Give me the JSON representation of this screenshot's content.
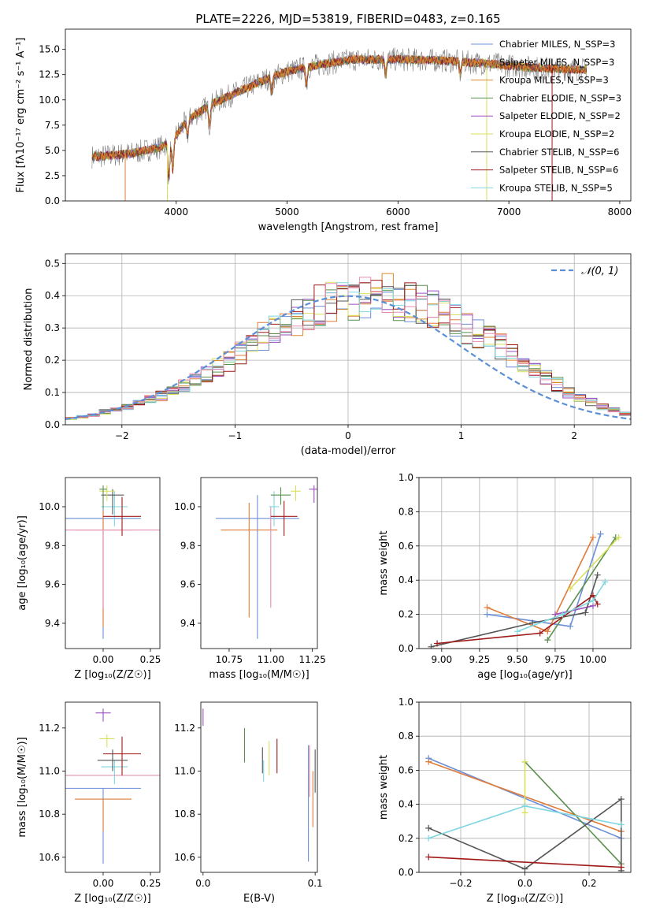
{
  "figure_title": "PLATE=2226, MJD=53819, FIBERID=0483, z=0.165",
  "colors": {
    "chabrier_miles": "#6a8fd8",
    "salpeter_miles": "#e07b39",
    "kroupa_miles": "#d98a2e",
    "chabrier_elodie": "#5a8f4e",
    "salpeter_elodie": "#9b4fc0",
    "kroupa_elodie": "#d8e05a",
    "chabrier_stelib": "#555555",
    "salpeter_stelib": "#a01818",
    "kroupa_stelib": "#7fd6e0",
    "pink": "#e58fb4",
    "gaussian": "#5b8fd6"
  },
  "chart_data": [
    {
      "type": "line",
      "title": "PLATE=2226, MJD=53819, FIBERID=0483, z=0.165",
      "xlabel": "wavelength [Angstrom, rest frame]",
      "ylabel": "Flux [fλ10⁻¹⁷ erg cm⁻² s⁻¹ A⁻¹]",
      "xlim": [
        3000,
        8100
      ],
      "ylim": [
        0,
        17
      ],
      "xticks": [
        "4000",
        "5000",
        "6000",
        "7000",
        "8000"
      ],
      "yticks": [
        "0.0",
        "2.5",
        "5.0",
        "7.5",
        "10.0",
        "12.5",
        "15.0"
      ],
      "legend_position": "upper right",
      "legend": [
        "Chabrier MILES, N_SSP=3",
        "Salpeter MILES, N_SSP=3",
        "Kroupa MILES, N_SSP=3",
        "Chabrier ELODIE, N_SSP=3",
        "Salpeter ELODIE, N_SSP=2",
        "Kroupa ELODIE, N_SSP=2",
        "Chabrier STELIB, N_SSP=6",
        "Salpeter STELIB, N_SSP=6",
        "Kroupa STELIB, N_SSP=5"
      ],
      "continuum": {
        "x": [
          3300,
          3600,
          3850,
          3950,
          4100,
          4300,
          4500,
          4800,
          5000,
          5300,
          5600,
          6000,
          6400,
          6800,
          7200,
          7600
        ],
        "y": [
          4.4,
          4.7,
          5.3,
          5.8,
          8.0,
          9.5,
          10.5,
          12.0,
          12.8,
          13.5,
          14.0,
          14.0,
          13.9,
          13.6,
          13.2,
          13.0
        ]
      }
    },
    {
      "type": "histogram",
      "xlabel": "(data-model)/error",
      "ylabel": "Normed distribution",
      "xlim": [
        -2.5,
        2.5
      ],
      "ylim": [
        0,
        0.53
      ],
      "xticks": [
        "−2",
        "−1",
        "0",
        "1",
        "2"
      ],
      "yticks": [
        "0.0",
        "0.1",
        "0.2",
        "0.3",
        "0.4",
        "0.5"
      ],
      "grid": true,
      "legend": [
        "𝒩(0, 1)"
      ],
      "bin_width": 0.1,
      "bins_start": -2.5,
      "base_values": [
        0.02,
        0.025,
        0.03,
        0.04,
        0.045,
        0.055,
        0.065,
        0.08,
        0.09,
        0.105,
        0.12,
        0.14,
        0.16,
        0.18,
        0.2,
        0.22,
        0.24,
        0.27,
        0.29,
        0.31,
        0.335,
        0.355,
        0.37,
        0.38,
        0.385,
        0.39,
        0.4,
        0.405,
        0.4,
        0.39,
        0.385,
        0.37,
        0.355,
        0.34,
        0.32,
        0.3,
        0.28,
        0.26,
        0.24,
        0.215,
        0.19,
        0.17,
        0.145,
        0.125,
        0.1,
        0.085,
        0.07,
        0.055,
        0.045,
        0.035
      ]
    },
    {
      "type": "errorbar",
      "xlabel": "Z [log₁₀(Z/Z☉)]",
      "ylabel": "age [log₁₀(age/yr)]",
      "xlim": [
        -0.2,
        0.3
      ],
      "ylim": [
        9.27,
        10.15
      ],
      "xticks": [
        "0.00",
        "0.25"
      ],
      "yticks": [
        "9.4",
        "9.6",
        "9.8",
        "10.0"
      ],
      "points": [
        {
          "x": 0.0,
          "y": 9.94,
          "xerr": 0.2,
          "yerr": [
            0.62,
            0.05
          ],
          "color": "chabrier_miles"
        },
        {
          "x": 0.0,
          "y": 9.88,
          "xerr": 0.15,
          "yerr": [
            0.5,
            0.1
          ],
          "color": "salpeter_miles"
        },
        {
          "x": 0.0,
          "y": 9.88,
          "xerr": 0.3,
          "yerr": [
            0.4,
            0.0
          ],
          "color": "pink"
        },
        {
          "x": 0.06,
          "y": 10.0,
          "xerr": 0.07,
          "yerr": [
            0.1,
            0.08
          ],
          "color": "kroupa_stelib"
        },
        {
          "x": 0.1,
          "y": 9.95,
          "xerr": 0.1,
          "yerr": [
            0.1,
            0.1
          ],
          "color": "salpeter_stelib"
        },
        {
          "x": 0.05,
          "y": 10.06,
          "xerr": 0.06,
          "yerr": [
            0.1,
            0.03
          ],
          "color": "chabrier_stelib"
        },
        {
          "x": 0.02,
          "y": 10.08,
          "xerr": 0.04,
          "yerr": [
            0.05,
            0.03
          ],
          "color": "kroupa_elodie"
        },
        {
          "x": 0.0,
          "y": 10.09,
          "xerr": 0.02,
          "yerr": [
            0.1,
            0.02
          ],
          "color": "chabrier_elodie"
        }
      ]
    },
    {
      "type": "errorbar",
      "xlabel": "mass [log₁₀(M/M☉)]",
      "ylabel": "",
      "xlim": [
        10.58,
        11.28
      ],
      "ylim": [
        9.27,
        10.15
      ],
      "xticks": [
        "10.75",
        "11.00",
        "11.25"
      ],
      "yticks": [
        "9.4",
        "9.6",
        "9.8",
        "10.0"
      ],
      "points": [
        {
          "x": 10.92,
          "y": 9.94,
          "xerr": 0.25,
          "yerr": [
            0.62,
            0.12
          ],
          "color": "chabrier_miles"
        },
        {
          "x": 10.87,
          "y": 9.88,
          "xerr": 0.17,
          "yerr": [
            0.45,
            0.14
          ],
          "color": "salpeter_miles"
        },
        {
          "x": 11.0,
          "y": 9.9,
          "xerr": 0.0,
          "yerr": [
            0.42,
            0.1
          ],
          "color": "pink"
        },
        {
          "x": 11.02,
          "y": 10.0,
          "xerr": 0.03,
          "yerr": [
            0.1,
            0.08
          ],
          "color": "kroupa_stelib"
        },
        {
          "x": 11.08,
          "y": 9.95,
          "xerr": 0.08,
          "yerr": [
            0.1,
            0.08
          ],
          "color": "salpeter_stelib"
        },
        {
          "x": 11.06,
          "y": 10.06,
          "xerr": 0.06,
          "yerr": [
            0.05,
            0.04
          ],
          "color": "chabrier_elodie"
        },
        {
          "x": 11.15,
          "y": 10.08,
          "xerr": 0.03,
          "yerr": [
            0.05,
            0.03
          ],
          "color": "kroupa_elodie"
        },
        {
          "x": 11.26,
          "y": 10.09,
          "xerr": 0.03,
          "yerr": [
            0.07,
            0.02
          ],
          "color": "salpeter_elodie"
        }
      ]
    },
    {
      "type": "line",
      "xlabel": "age [log₁₀(age/yr)]",
      "ylabel": "mass weight",
      "xlim": [
        8.85,
        10.25
      ],
      "ylim": [
        0,
        1
      ],
      "xticks": [
        "9.00",
        "9.25",
        "9.50",
        "9.75",
        "10.00"
      ],
      "yticks": [
        "0.0",
        "0.2",
        "0.4",
        "0.6",
        "0.8",
        "1.0"
      ],
      "grid": true,
      "series": [
        {
          "color": "chabrier_miles",
          "x": [
            9.3,
            9.85,
            10.05
          ],
          "y": [
            0.2,
            0.13,
            0.67
          ]
        },
        {
          "color": "salpeter_miles",
          "x": [
            9.3,
            9.7,
            10.0
          ],
          "y": [
            0.24,
            0.1,
            0.65
          ]
        },
        {
          "color": "chabrier_elodie",
          "x": [
            9.7,
            10.15
          ],
          "y": [
            0.05,
            0.65
          ]
        },
        {
          "color": "kroupa_elodie",
          "x": [
            9.85,
            10.17
          ],
          "y": [
            0.35,
            0.65
          ]
        },
        {
          "color": "salpeter_elodie",
          "x": [
            9.75,
            10.0
          ],
          "y": [
            0.2,
            0.25
          ]
        },
        {
          "color": "chabrier_stelib",
          "x": [
            8.93,
            9.6,
            9.95,
            10.03
          ],
          "y": [
            0.01,
            0.15,
            0.21,
            0.43
          ]
        },
        {
          "color": "salpeter_stelib",
          "x": [
            8.97,
            9.65,
            10.0,
            10.03
          ],
          "y": [
            0.03,
            0.09,
            0.31,
            0.26
          ]
        },
        {
          "color": "kroupa_stelib",
          "x": [
            9.5,
            9.8,
            10.0,
            10.08
          ],
          "y": [
            0.1,
            0.2,
            0.28,
            0.39
          ]
        }
      ]
    },
    {
      "type": "errorbar",
      "xlabel": "Z [log₁₀(Z/Z☉)]",
      "ylabel": "mass [log₁₀(M/M☉)]",
      "xlim": [
        -0.2,
        0.3
      ],
      "ylim": [
        10.53,
        11.32
      ],
      "xticks": [
        "0.00",
        "0.25"
      ],
      "yticks": [
        "10.6",
        "10.8",
        "11.0",
        "11.2"
      ],
      "points": [
        {
          "x": 0.0,
          "y": 10.92,
          "xerr": 0.2,
          "yerr": [
            0.35,
            0.0
          ],
          "color": "chabrier_miles"
        },
        {
          "x": 0.0,
          "y": 10.87,
          "xerr": 0.15,
          "yerr": [
            0.15,
            0.0
          ],
          "color": "salpeter_miles"
        },
        {
          "x": 0.0,
          "y": 10.98,
          "xerr": 0.3,
          "yerr": [
            0.0,
            0.0
          ],
          "color": "pink"
        },
        {
          "x": 0.06,
          "y": 11.02,
          "xerr": 0.07,
          "yerr": [
            0.08,
            0.03
          ],
          "color": "kroupa_stelib"
        },
        {
          "x": 0.1,
          "y": 11.08,
          "xerr": 0.1,
          "yerr": [
            0.1,
            0.08
          ],
          "color": "salpeter_stelib"
        },
        {
          "x": 0.05,
          "y": 11.05,
          "xerr": 0.08,
          "yerr": [
            0.05,
            0.05
          ],
          "color": "chabrier_stelib"
        },
        {
          "x": 0.02,
          "y": 11.15,
          "xerr": 0.04,
          "yerr": [
            0.04,
            0.02
          ],
          "color": "kroupa_elodie"
        },
        {
          "x": 0.0,
          "y": 11.27,
          "xerr": 0.04,
          "yerr": [
            0.04,
            0.02
          ],
          "color": "salpeter_elodie"
        }
      ]
    },
    {
      "type": "errorbar",
      "xlabel": "E(B-V)",
      "ylabel": "",
      "xlim": [
        -0.002,
        0.102
      ],
      "ylim": [
        10.53,
        11.32
      ],
      "xticks": [
        "0.0",
        "0.1"
      ],
      "yticks": [
        "10.6",
        "10.8",
        "11.0",
        "11.2"
      ],
      "points": [
        {
          "x": 0.0,
          "y": 11.25,
          "yerr": [
            0.04,
            0.04
          ],
          "color": "salpeter_elodie"
        },
        {
          "x": 0.037,
          "y": 11.12,
          "yerr": [
            0.08,
            0.08
          ],
          "color": "chabrier_elodie"
        },
        {
          "x": 0.053,
          "y": 11.05,
          "yerr": [
            0.06,
            0.06
          ],
          "color": "chabrier_stelib"
        },
        {
          "x": 0.054,
          "y": 11.0,
          "yerr": [
            0.05,
            0.05
          ],
          "color": "kroupa_stelib"
        },
        {
          "x": 0.059,
          "y": 11.06,
          "yerr": [
            0.08,
            0.08
          ],
          "color": "kroupa_elodie"
        },
        {
          "x": 0.066,
          "y": 11.07,
          "yerr": [
            0.08,
            0.08
          ],
          "color": "salpeter_stelib"
        },
        {
          "x": 0.094,
          "y": 10.85,
          "yerr": [
            0.27,
            0.27
          ],
          "color": "chabrier_miles"
        },
        {
          "x": 0.095,
          "y": 11.0,
          "yerr": [
            0.12,
            0.12
          ],
          "color": "pink"
        },
        {
          "x": 0.098,
          "y": 10.87,
          "yerr": [
            0.13,
            0.13
          ],
          "color": "salpeter_miles"
        },
        {
          "x": 0.1,
          "y": 11.0,
          "yerr": [
            0.1,
            0.1
          ],
          "color": "chabrier_stelib"
        }
      ]
    },
    {
      "type": "line",
      "xlabel": "Z [log₁₀(Z/Z☉)]",
      "ylabel": "mass weight",
      "xlim": [
        -0.33,
        0.33
      ],
      "ylim": [
        0,
        1
      ],
      "xticks": [
        "−0.2",
        "0.0",
        "0.2"
      ],
      "yticks": [
        "0.0",
        "0.2",
        "0.4",
        "0.6",
        "0.8",
        "1.0"
      ],
      "grid": true,
      "series": [
        {
          "color": "chabrier_miles",
          "x": [
            -0.3,
            0.3
          ],
          "y": [
            0.67,
            0.2
          ]
        },
        {
          "color": "salpeter_miles",
          "x": [
            -0.3,
            0.3
          ],
          "y": [
            0.65,
            0.24
          ]
        },
        {
          "color": "chabrier_elodie",
          "x": [
            0.0,
            0.3
          ],
          "y": [
            0.65,
            0.05
          ]
        },
        {
          "color": "kroupa_elodie",
          "x": [
            0.0,
            0.0
          ],
          "y": [
            0.65,
            0.35
          ]
        },
        {
          "color": "chabrier_stelib",
          "x": [
            -0.3,
            0.0,
            0.3,
            0.3
          ],
          "y": [
            0.26,
            0.02,
            0.43,
            0.01
          ]
        },
        {
          "color": "salpeter_stelib",
          "x": [
            -0.3,
            0.3
          ],
          "y": [
            0.09,
            0.03
          ]
        },
        {
          "color": "kroupa_stelib",
          "x": [
            -0.3,
            0.0,
            0.3
          ],
          "y": [
            0.2,
            0.39,
            0.28
          ]
        }
      ]
    }
  ]
}
